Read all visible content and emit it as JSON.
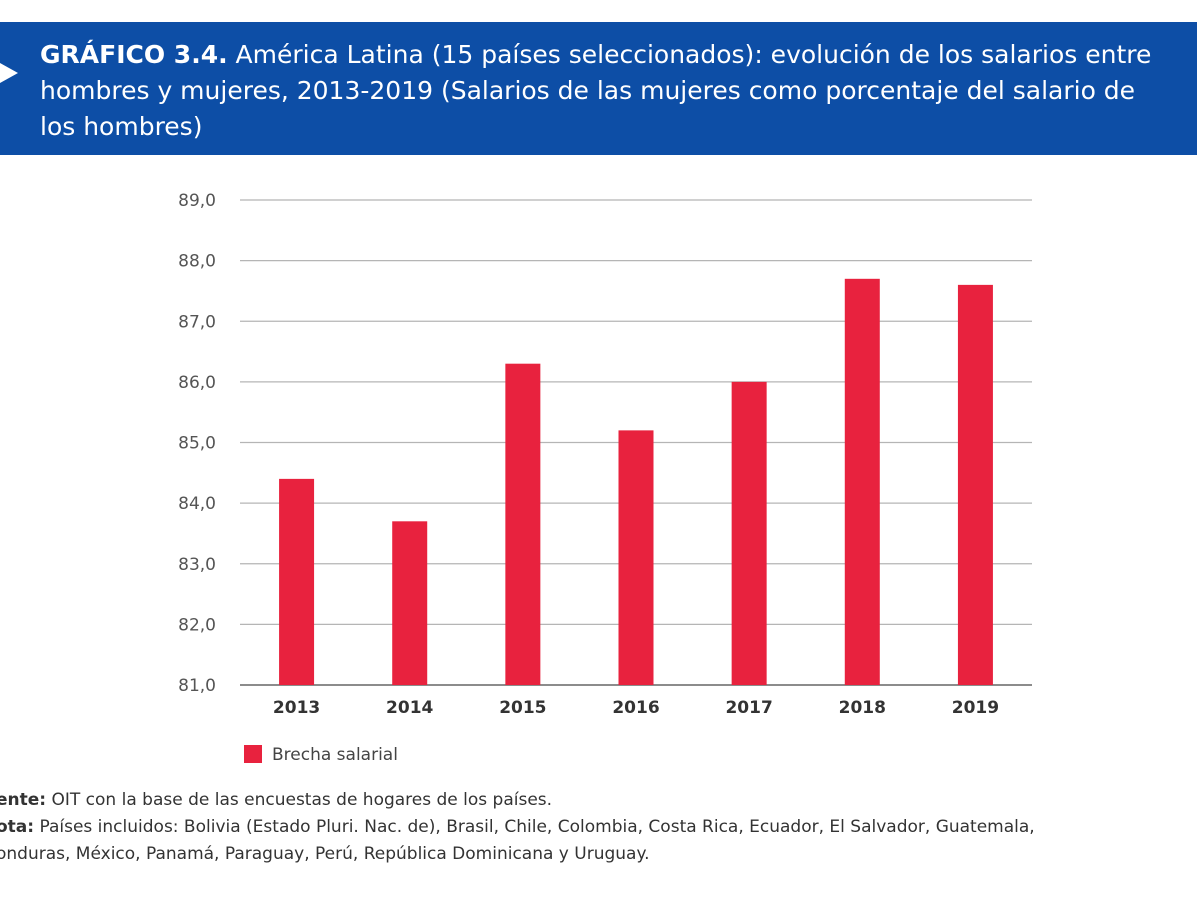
{
  "header": {
    "figure_label": "GRÁFICO 3.4.",
    "title": " América Latina (15 países seleccionados): evolución de los salarios entre hombres y mujeres, 2013-2019 (Salarios de las mujeres como porcentaje del salario de los hombres)"
  },
  "chart_data": {
    "type": "bar",
    "categories": [
      "2013",
      "2014",
      "2015",
      "2016",
      "2017",
      "2018",
      "2019"
    ],
    "series": [
      {
        "name": "Brecha salarial",
        "values": [
          84.4,
          83.7,
          86.3,
          85.2,
          86.0,
          87.7,
          87.6
        ],
        "color": "#e8223e"
      }
    ],
    "ylim": [
      81.0,
      89.0
    ],
    "yticks": [
      "81,0",
      "82,0",
      "83,0",
      "84,0",
      "85,0",
      "86,0",
      "87,0",
      "88,0",
      "89,0"
    ],
    "grid": true,
    "legend_position": "bottom-left"
  },
  "notes": {
    "source_label": "ente:",
    "source_text": " OIT con la base de las encuestas de hogares de los países.",
    "note_label": "ota:",
    "note_text_line1": " Países incluidos: Bolivia (Estado Pluri. Nac. de), Brasil, Chile, Colombia, Costa Rica, Ecuador, El Salvador, Guatemala,",
    "note_text_line2": "onduras, México, Panamá, Paraguay, Perú, República Dominicana y Uruguay."
  }
}
